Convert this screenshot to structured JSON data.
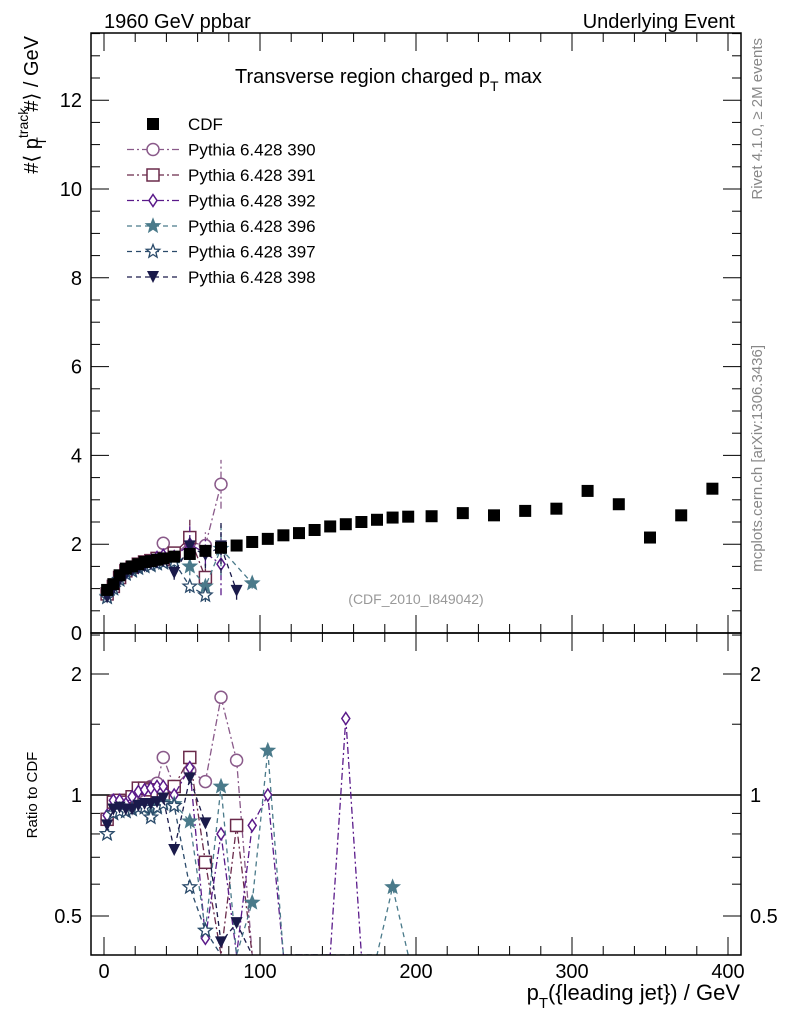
{
  "header": {
    "left": "1960 GeV ppbar",
    "right": "Underlying Event"
  },
  "side": {
    "rivet": "Rivet 4.1.0, ≥ 2M events",
    "mcplots": "mcplots.cern.ch [arXiv:1306.3436]"
  },
  "chart_data": {
    "type": "scatter",
    "title": {
      "main": "Transverse region charged p",
      "sub": "T",
      "tail": " max"
    },
    "ylabel": {
      "pre": "#⟨ p",
      "sup": "track",
      "sub": "T",
      "post": " #⟩ / GeV"
    },
    "xlabel": {
      "pre": "p",
      "sub": "T",
      "post": "({leading jet}) / GeV"
    },
    "ratio_ylabel": "Ratio to CDF",
    "watermark": "(CDF_2010_I849042)",
    "xlim": [
      -10,
      410
    ],
    "ylim": [
      0,
      13.5
    ],
    "ratio_ylim": [
      0.4,
      2.53
    ],
    "ratio_scale": "log",
    "xticks": [
      "0",
      "100",
      "200",
      "300",
      "400"
    ],
    "yticks": [
      "0",
      "2",
      "4",
      "6",
      "8",
      "10",
      "12"
    ],
    "ratio_yticks": [
      "0.5",
      "1",
      "2"
    ],
    "legend_position": "top-left",
    "series": [
      {
        "name": "CDF",
        "color": "#000000",
        "marker": "square-filled",
        "line": "none",
        "x": [
          2,
          6,
          10,
          14,
          18,
          22,
          26,
          30,
          34,
          38,
          45,
          55,
          65,
          75,
          85,
          95,
          105,
          115,
          125,
          135,
          145,
          155,
          165,
          175,
          185,
          195,
          210,
          230,
          250,
          270,
          290,
          310,
          330,
          350,
          370,
          390
        ],
        "y": [
          0.97,
          1.1,
          1.3,
          1.45,
          1.5,
          1.55,
          1.6,
          1.62,
          1.65,
          1.68,
          1.72,
          1.78,
          1.85,
          1.92,
          1.97,
          2.05,
          2.12,
          2.2,
          2.25,
          2.32,
          2.4,
          2.45,
          2.5,
          2.55,
          2.6,
          2.62,
          2.63,
          2.7,
          2.65,
          2.75,
          2.8,
          3.2,
          2.9,
          2.15,
          2.65,
          3.25
        ]
      },
      {
        "name": "Pythia 6.428 390",
        "color": "#8a5a8a",
        "marker": "circle-open",
        "line": "dashdot",
        "x": [
          2,
          6,
          10,
          14,
          18,
          22,
          26,
          30,
          34,
          38,
          45,
          55,
          65,
          75
        ],
        "y": [
          0.85,
          1.05,
          1.25,
          1.38,
          1.45,
          1.5,
          1.55,
          1.6,
          1.65,
          2.02,
          1.75,
          2.05,
          1.97,
          3.35
        ],
        "err": [
          0.05,
          0.05,
          0.05,
          0.05,
          0.05,
          0.05,
          0.05,
          0.05,
          0.05,
          0.08,
          0.15,
          0.4,
          0.3,
          0.55
        ],
        "ratio_x": [
          2,
          6,
          10,
          14,
          18,
          22,
          26,
          30,
          34,
          38,
          45,
          55,
          65,
          75,
          85,
          95
        ],
        "ratio_y": [
          0.87,
          0.97,
          0.97,
          0.96,
          0.99,
          1.02,
          1.03,
          1.05,
          1.07,
          1.24,
          1.05,
          1.15,
          1.08,
          1.75,
          1.22,
          0.2
        ]
      },
      {
        "name": "Pythia 6.428 391",
        "color": "#6a2a4a",
        "marker": "square-open",
        "line": "dashdot",
        "x": [
          2,
          6,
          10,
          14,
          18,
          22,
          26,
          30,
          34,
          38,
          45,
          55,
          65
        ],
        "y": [
          0.88,
          1.05,
          1.25,
          1.4,
          1.48,
          1.55,
          1.6,
          1.63,
          1.68,
          1.65,
          1.8,
          2.15,
          1.25
        ],
        "err": [
          0.05,
          0.05,
          0.05,
          0.05,
          0.05,
          0.05,
          0.05,
          0.05,
          0.05,
          0.08,
          0.15,
          0.4,
          0.3
        ],
        "ratio_x": [
          2,
          6,
          10,
          14,
          18,
          22,
          26,
          30,
          34,
          38,
          45,
          55,
          65,
          75,
          85,
          95
        ],
        "ratio_y": [
          0.87,
          0.96,
          0.97,
          0.96,
          0.99,
          1.04,
          1.04,
          1.03,
          1.02,
          1.0,
          1.05,
          1.24,
          0.68,
          0.2,
          0.84,
          0.2
        ]
      },
      {
        "name": "Pythia 6.428 392",
        "color": "#5a1a8a",
        "marker": "diamond-open",
        "line": "dashdot",
        "x": [
          2,
          6,
          10,
          14,
          18,
          22,
          26,
          30,
          34,
          38,
          45,
          55,
          65,
          75
        ],
        "y": [
          0.9,
          1.07,
          1.27,
          1.4,
          1.47,
          1.52,
          1.58,
          1.62,
          1.7,
          1.75,
          1.72,
          2.0,
          1.8,
          1.55
        ],
        "err": [
          0.05,
          0.05,
          0.05,
          0.05,
          0.05,
          0.05,
          0.05,
          0.05,
          0.05,
          0.08,
          0.15,
          0.4,
          0.3,
          0.7
        ],
        "ratio_x": [
          2,
          6,
          10,
          14,
          18,
          22,
          26,
          30,
          34,
          38,
          45,
          55,
          65,
          75,
          85,
          95,
          105,
          115,
          145,
          155,
          165
        ],
        "ratio_y": [
          0.89,
          0.97,
          0.97,
          0.95,
          0.99,
          1.02,
          1.03,
          1.04,
          1.05,
          1.05,
          1.0,
          1.17,
          0.44,
          0.8,
          0.2,
          0.84,
          1.0,
          0.2,
          0.2,
          1.55,
          0.2
        ]
      },
      {
        "name": "Pythia 6.428 396",
        "color": "#4a7a8a",
        "marker": "star-filled",
        "line": "dashed",
        "x": [
          2,
          6,
          10,
          14,
          18,
          22,
          26,
          30,
          34,
          38,
          45,
          55,
          65,
          75,
          95
        ],
        "y": [
          0.82,
          1.0,
          1.2,
          1.35,
          1.42,
          1.48,
          1.52,
          1.55,
          1.58,
          1.6,
          1.62,
          1.5,
          1.05,
          1.9,
          1.12
        ],
        "err": [
          0.05,
          0.05,
          0.05,
          0.05,
          0.05,
          0.05,
          0.05,
          0.05,
          0.05,
          0.08,
          0.15,
          0.2,
          0.2,
          0.6,
          0.12
        ],
        "ratio_x": [
          2,
          6,
          10,
          14,
          18,
          22,
          26,
          30,
          34,
          38,
          45,
          55,
          65,
          75,
          85,
          95,
          105,
          115,
          175,
          185,
          195
        ],
        "ratio_y": [
          0.8,
          0.9,
          0.92,
          0.91,
          0.92,
          0.93,
          0.93,
          0.9,
          0.94,
          0.96,
          0.95,
          0.86,
          0.46,
          1.05,
          0.2,
          0.54,
          1.29,
          0.2,
          0.2,
          0.59,
          0.2
        ]
      },
      {
        "name": "Pythia 6.428 397",
        "color": "#2a4a6a",
        "marker": "star-open",
        "line": "dashed",
        "x": [
          2,
          6,
          10,
          14,
          18,
          22,
          26,
          30,
          34,
          38,
          45,
          55,
          65
        ],
        "y": [
          0.8,
          1.0,
          1.2,
          1.33,
          1.4,
          1.46,
          1.5,
          1.52,
          1.56,
          1.58,
          1.6,
          1.05,
          0.85
        ],
        "err": [
          0.05,
          0.05,
          0.05,
          0.05,
          0.05,
          0.05,
          0.05,
          0.05,
          0.05,
          0.08,
          0.15,
          0.15,
          0.15
        ],
        "ratio_x": [
          2,
          6,
          10,
          14,
          18,
          22,
          26,
          30,
          34,
          38,
          45,
          55,
          65,
          75
        ],
        "ratio_y": [
          0.8,
          0.9,
          0.91,
          0.91,
          0.92,
          0.93,
          0.93,
          0.88,
          0.93,
          0.95,
          0.94,
          0.59,
          0.46,
          0.2
        ]
      },
      {
        "name": "Pythia 6.428 398",
        "color": "#1a1a4a",
        "marker": "triangle-down-filled",
        "line": "dashed",
        "x": [
          2,
          6,
          10,
          14,
          18,
          22,
          26,
          30,
          34,
          38,
          45,
          55,
          65,
          75,
          85
        ],
        "y": [
          0.8,
          0.98,
          1.18,
          1.32,
          1.4,
          1.45,
          1.5,
          1.55,
          1.58,
          1.62,
          1.35,
          1.95,
          1.75,
          1.95,
          0.95
        ],
        "err": [
          0.05,
          0.05,
          0.05,
          0.05,
          0.05,
          0.05,
          0.05,
          0.05,
          0.05,
          0.08,
          0.15,
          0.3,
          0.3,
          0.6,
          0.2
        ],
        "ratio_x": [
          2,
          6,
          10,
          14,
          18,
          22,
          26,
          30,
          34,
          38,
          45,
          55,
          65,
          75,
          85,
          95
        ],
        "ratio_y": [
          0.84,
          0.92,
          0.93,
          0.92,
          0.92,
          0.94,
          0.95,
          0.95,
          0.96,
          0.98,
          0.73,
          1.1,
          0.85,
          0.43,
          0.48,
          0.2
        ]
      }
    ]
  }
}
